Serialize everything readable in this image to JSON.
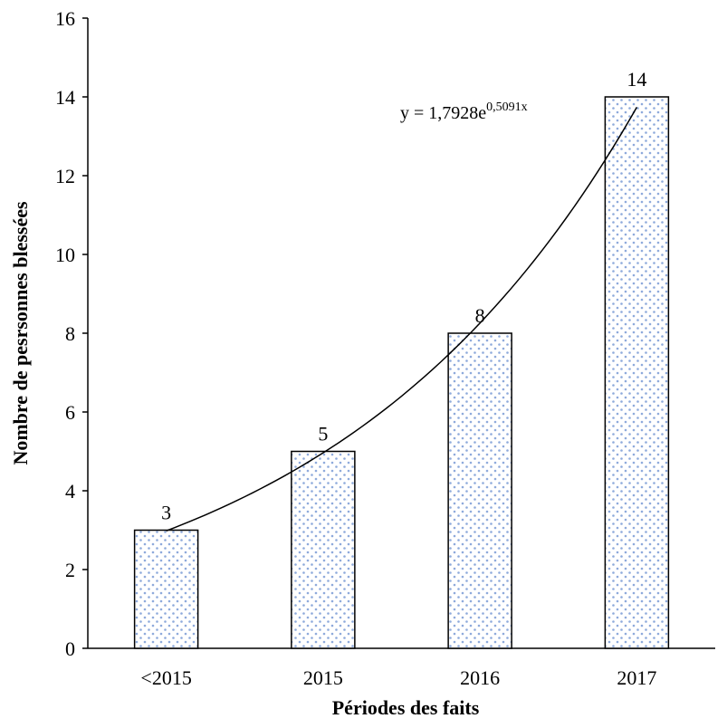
{
  "chart_data": {
    "type": "bar",
    "categories": [
      "<2015",
      "2015",
      "2016",
      "2017"
    ],
    "values": [
      3,
      5,
      8,
      14
    ],
    "data_labels": [
      "3",
      "5",
      "8",
      "14"
    ],
    "title": "",
    "xlabel": "Périodes des faits",
    "ylabel": "Nombre de pesrsonnes blessées",
    "ylim": [
      0,
      16
    ],
    "yticks": [
      0,
      2,
      4,
      6,
      8,
      10,
      12,
      14,
      16
    ],
    "ytick_labels": [
      "0",
      "2",
      "4",
      "6",
      "8",
      "10",
      "12",
      "14",
      "16"
    ],
    "grid": false,
    "legend": "none",
    "bar_fill": "dotted",
    "bar_dot_color": "#8eaadb",
    "bar_edge_color": "#000000",
    "trendline": {
      "type": "exponential",
      "a": 1.7928,
      "b": 0.5091,
      "equation_base": "y = 1,7928e",
      "equation_exponent": "0,5091x"
    }
  }
}
